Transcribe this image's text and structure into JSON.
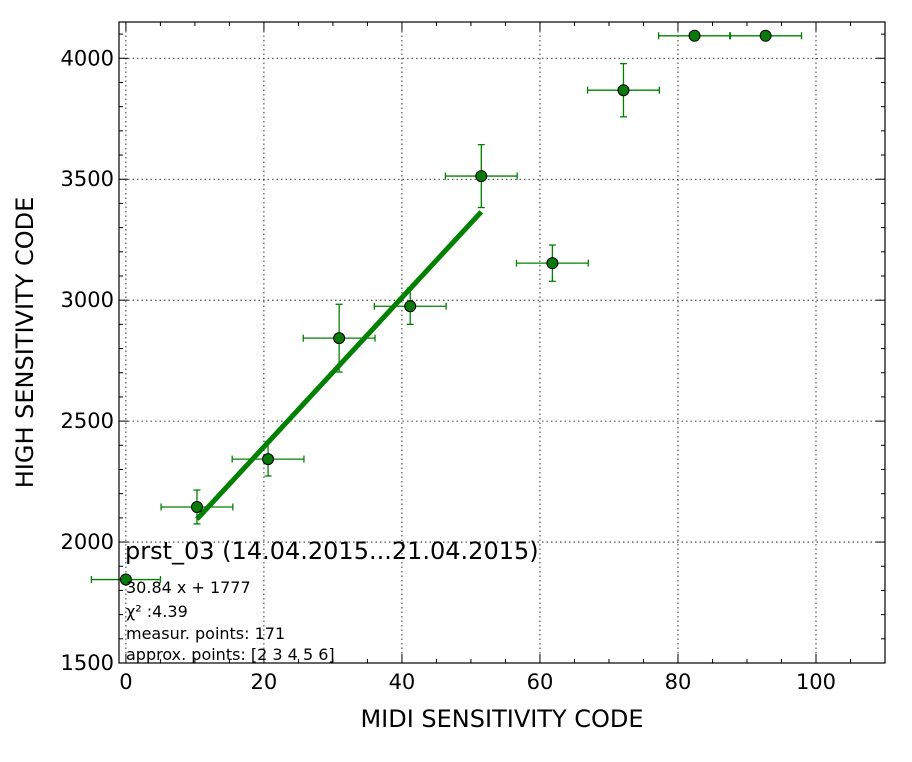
{
  "chart_data": {
    "type": "scatter",
    "xlabel": "MIDI SENSITIVITY CODE",
    "ylabel": "HIGH SENSITIVITY CODE",
    "xlim": [
      -1,
      110
    ],
    "ylim": [
      1500,
      4150
    ],
    "xticks": [
      0,
      20,
      40,
      60,
      80,
      100
    ],
    "yticks": [
      1500,
      2000,
      2500,
      3000,
      3500,
      4000
    ],
    "grid": true,
    "colors": {
      "points": "#008000",
      "marker_fill": "#0a7a0a",
      "fit_line": "#008000"
    },
    "series": [
      {
        "points": [
          {
            "x": 0,
            "y": 1845,
            "xerr": 5,
            "yerr": 0
          },
          {
            "x": 10.3,
            "y": 2145,
            "xerr": 5.2,
            "yerr": 70
          },
          {
            "x": 20.6,
            "y": 2343,
            "xerr": 5.2,
            "yerr": 70
          },
          {
            "x": 30.9,
            "y": 2843,
            "xerr": 5.2,
            "yerr": 140
          },
          {
            "x": 41.2,
            "y": 2975,
            "xerr": 5.2,
            "yerr": 75
          },
          {
            "x": 51.5,
            "y": 3513,
            "xerr": 5.2,
            "yerr": 130
          },
          {
            "x": 61.8,
            "y": 3153,
            "xerr": 5.2,
            "yerr": 75
          },
          {
            "x": 72.1,
            "y": 3868,
            "xerr": 5.2,
            "yerr": 110
          },
          {
            "x": 82.4,
            "y": 4093,
            "xerr": 5.2,
            "yerr": 0
          },
          {
            "x": 92.7,
            "y": 4093,
            "xerr": 5.2,
            "yerr": 0
          }
        ]
      }
    ],
    "fit_line": {
      "slope": 30.84,
      "intercept": 1777,
      "x_start": 10.3,
      "x_end": 51.5
    },
    "annotation": {
      "title": "prst_03 (14.04.2015...21.04.2015)",
      "lines": [
        "30.84 x + 1777",
        "χ² :4.39",
        "measur. points: 171",
        "approx. points: [2 3 4 5 6]"
      ]
    }
  }
}
